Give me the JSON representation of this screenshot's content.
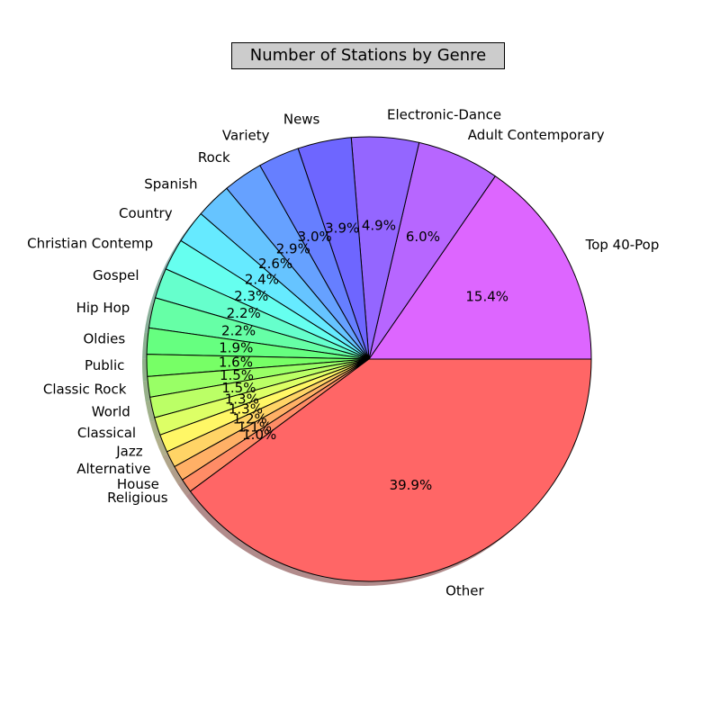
{
  "chart_data": {
    "type": "pie",
    "title": "Number of Stations by Genre",
    "shadow": true,
    "start_angle_deg": 0,
    "direction": "counterclockwise",
    "slices": [
      {
        "label": "Top 40-Pop",
        "pct": 15.4,
        "pct_label": "15.4%",
        "color": "#dd66ff"
      },
      {
        "label": "Adult Contemporary",
        "pct": 6.0,
        "pct_label": "6.0%",
        "color": "#b766ff"
      },
      {
        "label": "Electronic-Dance",
        "pct": 4.9,
        "pct_label": "4.9%",
        "color": "#9466ff"
      },
      {
        "label": "News",
        "pct": 3.9,
        "pct_label": "3.9%",
        "color": "#6e66ff"
      },
      {
        "label": "Variety",
        "pct": 3.0,
        "pct_label": "3.0%",
        "color": "#667fff"
      },
      {
        "label": "Rock",
        "pct": 2.9,
        "pct_label": "2.9%",
        "color": "#66a1ff"
      },
      {
        "label": "Spanish",
        "pct": 2.6,
        "pct_label": "2.6%",
        "color": "#66c4ff"
      },
      {
        "label": "Country",
        "pct": 2.4,
        "pct_label": "2.4%",
        "color": "#66eaff"
      },
      {
        "label": "Christian Contemp",
        "pct": 2.3,
        "pct_label": "2.3%",
        "color": "#66ffef"
      },
      {
        "label": "Gospel",
        "pct": 2.2,
        "pct_label": "2.2%",
        "color": "#66ffcc"
      },
      {
        "label": "Hip Hop",
        "pct": 2.2,
        "pct_label": "2.2%",
        "color": "#66ffa6"
      },
      {
        "label": "Oldies",
        "pct": 1.9,
        "pct_label": "1.9%",
        "color": "#66ff80"
      },
      {
        "label": "Public",
        "pct": 1.6,
        "pct_label": "1.6%",
        "color": "#77ff66"
      },
      {
        "label": "Classic Rock",
        "pct": 1.5,
        "pct_label": "1.5%",
        "color": "#99ff66"
      },
      {
        "label": "World",
        "pct": 1.5,
        "pct_label": "1.5%",
        "color": "#bbff66"
      },
      {
        "label": "Classical",
        "pct": 1.3,
        "pct_label": "1.3%",
        "color": "#ddff66"
      },
      {
        "label": "Jazz",
        "pct": 1.3,
        "pct_label": "1.3%",
        "color": "#fff766"
      },
      {
        "label": "Alternative",
        "pct": 1.2,
        "pct_label": "1.2%",
        "color": "#ffd466"
      },
      {
        "label": "House",
        "pct": 1.1,
        "pct_label": "1.1%",
        "color": "#ffb066"
      },
      {
        "label": "Religious",
        "pct": 1.0,
        "pct_label": "1.0%",
        "color": "#ff8c66"
      },
      {
        "label": "Other",
        "pct": 39.9,
        "pct_label": "39.9%",
        "color": "#ff6666"
      }
    ]
  }
}
